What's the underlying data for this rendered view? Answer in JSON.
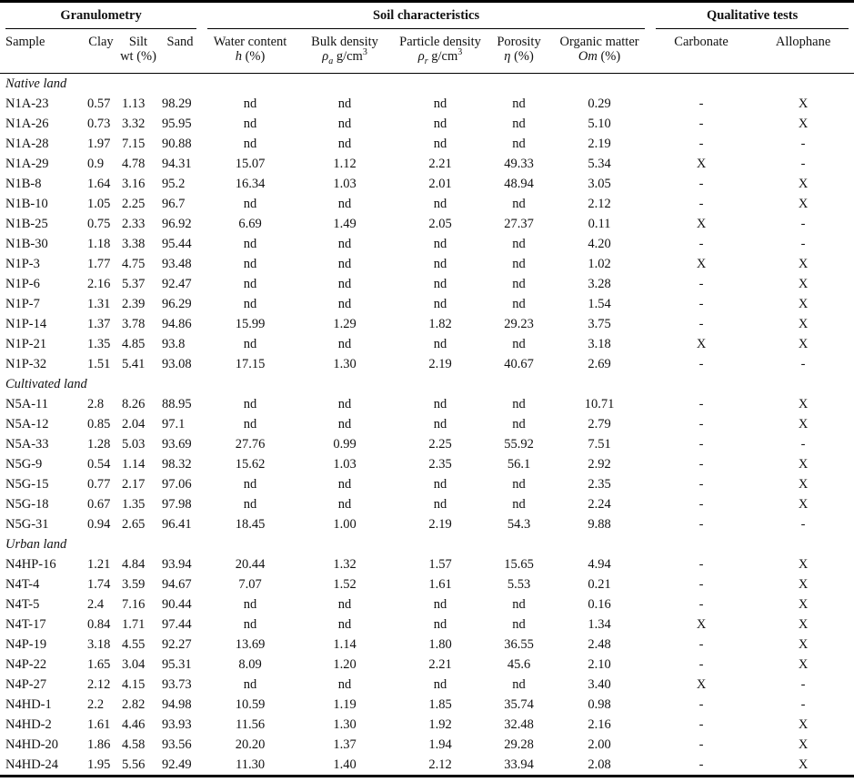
{
  "header": {
    "groups": [
      "Granulometry",
      "Soil characteristics",
      "Qualitative tests"
    ],
    "columns": [
      {
        "top": "Sample"
      },
      {
        "top": "Clay"
      },
      {
        "top": "Silt",
        "unit": "wt (%)"
      },
      {
        "top": "Sand"
      },
      {
        "top": "Water content",
        "symbol": "h",
        "unit": "(%)"
      },
      {
        "top": "Bulk density",
        "symbol": "ρ",
        "sub": "a",
        "unit": "g/cm",
        "sup": "3"
      },
      {
        "top": "Particle density",
        "symbol": "ρ",
        "sub": "r",
        "unit": "g/cm",
        "sup": "3"
      },
      {
        "top": "Porosity",
        "symbol": "η",
        "unit": "(%)"
      },
      {
        "top": "Organic matter",
        "symbol": "Om",
        "unit": "(%)"
      },
      {
        "top": "Carbonate"
      },
      {
        "top": "Allophane"
      }
    ]
  },
  "sections": [
    {
      "title": "Native land",
      "rows": [
        [
          "N1A-23",
          "0.57",
          "1.13",
          "98.29",
          "nd",
          "nd",
          "nd",
          "nd",
          "0.29",
          "-",
          "X"
        ],
        [
          "N1A-26",
          "0.73",
          "3.32",
          "95.95",
          "nd",
          "nd",
          "nd",
          "nd",
          "5.10",
          "-",
          "X"
        ],
        [
          "N1A-28",
          "1.97",
          "7.15",
          "90.88",
          "nd",
          "nd",
          "nd",
          "nd",
          "2.19",
          "-",
          "-"
        ],
        [
          "N1A-29",
          "0.9",
          "4.78",
          "94.31",
          "15.07",
          "1.12",
          "2.21",
          "49.33",
          "5.34",
          "X",
          "-"
        ],
        [
          "N1B-8",
          "1.64",
          "3.16",
          "95.2",
          "16.34",
          "1.03",
          "2.01",
          "48.94",
          "3.05",
          "-",
          "X"
        ],
        [
          "N1B-10",
          "1.05",
          "2.25",
          "96.7",
          "nd",
          "nd",
          "nd",
          "nd",
          "2.12",
          "-",
          "X"
        ],
        [
          "N1B-25",
          "0.75",
          "2.33",
          "96.92",
          "6.69",
          "1.49",
          "2.05",
          "27.37",
          "0.11",
          "X",
          "-"
        ],
        [
          "N1B-30",
          "1.18",
          "3.38",
          "95.44",
          "nd",
          "nd",
          "nd",
          "nd",
          "4.20",
          "-",
          "-"
        ],
        [
          "N1P-3",
          "1.77",
          "4.75",
          "93.48",
          "nd",
          "nd",
          "nd",
          "nd",
          "1.02",
          "X",
          "X"
        ],
        [
          "N1P-6",
          "2.16",
          "5.37",
          "92.47",
          "nd",
          "nd",
          "nd",
          "nd",
          "3.28",
          "-",
          "X"
        ],
        [
          "N1P-7",
          "1.31",
          "2.39",
          "96.29",
          "nd",
          "nd",
          "nd",
          "nd",
          "1.54",
          "-",
          "X"
        ],
        [
          "N1P-14",
          "1.37",
          "3.78",
          "94.86",
          "15.99",
          "1.29",
          "1.82",
          "29.23",
          "3.75",
          "-",
          "X"
        ],
        [
          "N1P-21",
          "1.35",
          "4.85",
          "93.8",
          "nd",
          "nd",
          "nd",
          "nd",
          "3.18",
          "X",
          "X"
        ],
        [
          "N1P-32",
          "1.51",
          "5.41",
          "93.08",
          "17.15",
          "1.30",
          "2.19",
          "40.67",
          "2.69",
          "-",
          "-"
        ]
      ]
    },
    {
      "title": "Cultivated land",
      "rows": [
        [
          "N5A-11",
          "2.8",
          "8.26",
          "88.95",
          "nd",
          "nd",
          "nd",
          "nd",
          "10.71",
          "-",
          "X"
        ],
        [
          "N5A-12",
          "0.85",
          "2.04",
          "97.1",
          "nd",
          "nd",
          "nd",
          "nd",
          "2.79",
          "-",
          "X"
        ],
        [
          "N5A-33",
          "1.28",
          "5.03",
          "93.69",
          "27.76",
          "0.99",
          "2.25",
          "55.92",
          "7.51",
          "-",
          "-"
        ],
        [
          "N5G-9",
          "0.54",
          "1.14",
          "98.32",
          "15.62",
          "1.03",
          "2.35",
          "56.1",
          "2.92",
          "-",
          "X"
        ],
        [
          "N5G-15",
          "0.77",
          "2.17",
          "97.06",
          "nd",
          "nd",
          "nd",
          "nd",
          "2.35",
          "-",
          "X"
        ],
        [
          "N5G-18",
          "0.67",
          "1.35",
          "97.98",
          "nd",
          "nd",
          "nd",
          "nd",
          "2.24",
          "-",
          "X"
        ],
        [
          "N5G-31",
          "0.94",
          "2.65",
          "96.41",
          "18.45",
          "1.00",
          "2.19",
          "54.3",
          "9.88",
          "-",
          "-"
        ]
      ]
    },
    {
      "title": "Urban land",
      "rows": [
        [
          "N4HP-16",
          "1.21",
          "4.84",
          "93.94",
          "20.44",
          "1.32",
          "1.57",
          "15.65",
          "4.94",
          "-",
          "X"
        ],
        [
          "N4T-4",
          "1.74",
          "3.59",
          "94.67",
          "7.07",
          "1.52",
          "1.61",
          "5.53",
          "0.21",
          "-",
          "X"
        ],
        [
          "N4T-5",
          "2.4",
          "7.16",
          "90.44",
          "nd",
          "nd",
          "nd",
          "nd",
          "0.16",
          "-",
          "X"
        ],
        [
          "N4T-17",
          "0.84",
          "1.71",
          "97.44",
          "nd",
          "nd",
          "nd",
          "nd",
          "1.34",
          "X",
          "X"
        ],
        [
          "N4P-19",
          "3.18",
          "4.55",
          "92.27",
          "13.69",
          "1.14",
          "1.80",
          "36.55",
          "2.48",
          "-",
          "X"
        ],
        [
          "N4P-22",
          "1.65",
          "3.04",
          "95.31",
          "8.09",
          "1.20",
          "2.21",
          "45.6",
          "2.10",
          "-",
          "X"
        ],
        [
          "N4P-27",
          "2.12",
          "4.15",
          "93.73",
          "nd",
          "nd",
          "nd",
          "nd",
          "3.40",
          "X",
          "-"
        ],
        [
          "N4HD-1",
          "2.2",
          "2.82",
          "94.98",
          "10.59",
          "1.19",
          "1.85",
          "35.74",
          "0.98",
          "-",
          "-"
        ],
        [
          "N4HD-2",
          "1.61",
          "4.46",
          "93.93",
          "11.56",
          "1.30",
          "1.92",
          "32.48",
          "2.16",
          "-",
          "X"
        ],
        [
          "N4HD-20",
          "1.86",
          "4.58",
          "93.56",
          "20.20",
          "1.37",
          "1.94",
          "29.28",
          "2.00",
          "-",
          "X"
        ],
        [
          "N4HD-24",
          "1.95",
          "5.56",
          "92.49",
          "11.30",
          "1.40",
          "2.12",
          "33.94",
          "2.08",
          "-",
          "X"
        ]
      ]
    }
  ]
}
